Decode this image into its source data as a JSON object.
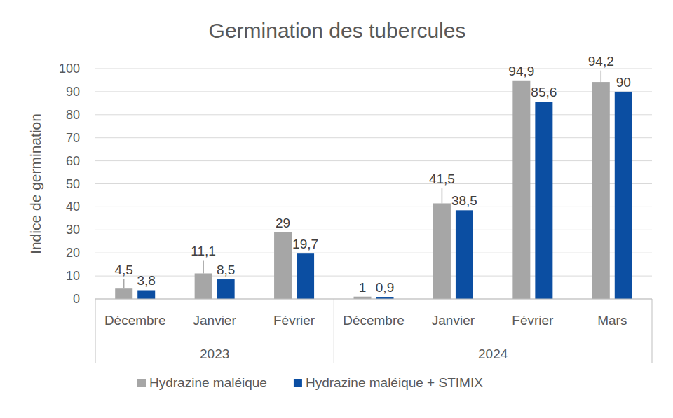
{
  "chart_data": {
    "type": "bar",
    "title": "Germination des tubercules",
    "y_label": "Indice de germination",
    "categories": [
      "Décembre",
      "Janvier",
      "Février",
      "Décembre",
      "Janvier",
      "Février",
      "Mars"
    ],
    "x_groups": [
      {
        "label": "2023",
        "size": 3
      },
      {
        "label": "2024",
        "size": 4
      }
    ],
    "series": [
      {
        "name": "Hydrazine maléique",
        "color": "#a6a6a6",
        "values": [
          4.5,
          11.1,
          29,
          1,
          41.5,
          94.9,
          94.2
        ],
        "value_labels": [
          "4,5",
          "11,1",
          "29",
          "1",
          "41,5",
          "94,9",
          "94,2"
        ],
        "errors": [
          4,
          5.5,
          null,
          null,
          6.5,
          null,
          5
        ]
      },
      {
        "name": "Hydrazine maléique + STIMIX",
        "color": "#0b4ea2",
        "values": [
          3.8,
          8.5,
          19.7,
          0.9,
          38.5,
          85.6,
          90
        ],
        "value_labels": [
          "3,8",
          "8,5",
          "19,7",
          "0,9",
          "38,5",
          "85,6",
          "90"
        ]
      }
    ],
    "ylim": [
      0,
      100
    ],
    "yticks": [
      0,
      10,
      20,
      30,
      40,
      50,
      60,
      70,
      80,
      90,
      100
    ],
    "grid": true,
    "data_labels": true,
    "legend": "bottom"
  }
}
